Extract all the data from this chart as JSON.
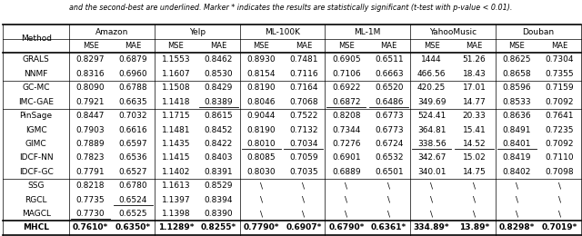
{
  "caption": "and the second-best are underlined. Marker * indicates the results are statistically significant (t-test with p-value < 0.01).",
  "datasets": [
    "Amazon",
    "Yelp",
    "ML-100K",
    "ML-1M",
    "YahooMusic",
    "Douban"
  ],
  "methods": [
    {
      "name": "GRALS",
      "group": 0,
      "values": [
        "0.8297",
        "0.6879",
        "1.1553",
        "0.8462",
        "0.8930",
        "0.7481",
        "0.6905",
        "0.6511",
        "1444",
        "51.26",
        "0.8625",
        "0.7304"
      ],
      "bold": [],
      "underline": []
    },
    {
      "name": "NNMF",
      "group": 0,
      "values": [
        "0.8316",
        "0.6960",
        "1.1607",
        "0.8530",
        "0.8154",
        "0.7116",
        "0.7106",
        "0.6663",
        "466.56",
        "18.43",
        "0.8658",
        "0.7355"
      ],
      "bold": [],
      "underline": []
    },
    {
      "name": "GC-MC",
      "group": 1,
      "values": [
        "0.8090",
        "0.6788",
        "1.1508",
        "0.8429",
        "0.8190",
        "0.7164",
        "0.6922",
        "0.6520",
        "420.25",
        "17.01",
        "0.8596",
        "0.7159"
      ],
      "bold": [],
      "underline": []
    },
    {
      "name": "IMC-GAE",
      "group": 1,
      "values": [
        "0.7921",
        "0.6635",
        "1.1418",
        "0.8389",
        "0.8046",
        "0.7068",
        "0.6872",
        "0.6486",
        "349.69",
        "14.77",
        "0.8533",
        "0.7092"
      ],
      "bold": [],
      "underline": [
        3,
        6,
        7
      ]
    },
    {
      "name": "PinSage",
      "group": 2,
      "values": [
        "0.8447",
        "0.7032",
        "1.1715",
        "0.8615",
        "0.9044",
        "0.7522",
        "0.8208",
        "0.6773",
        "524.41",
        "20.33",
        "0.8636",
        "0.7641"
      ],
      "bold": [],
      "underline": []
    },
    {
      "name": "IGMC",
      "group": 2,
      "values": [
        "0.7903",
        "0.6616",
        "1.1481",
        "0.8452",
        "0.8190",
        "0.7132",
        "0.7344",
        "0.6773",
        "364.81",
        "15.41",
        "0.8491",
        "0.7235"
      ],
      "bold": [],
      "underline": []
    },
    {
      "name": "GIMC",
      "group": 2,
      "values": [
        "0.7889",
        "0.6597",
        "1.1435",
        "0.8422",
        "0.8010",
        "0.7034",
        "0.7276",
        "0.6724",
        "338.56",
        "14.52",
        "0.8401",
        "0.7092"
      ],
      "bold": [],
      "underline": [
        4,
        5,
        8,
        9,
        10
      ]
    },
    {
      "name": "IDCF-NN",
      "group": 2,
      "values": [
        "0.7823",
        "0.6536",
        "1.1415",
        "0.8403",
        "0.8085",
        "0.7059",
        "0.6901",
        "0.6532",
        "342.67",
        "15.02",
        "0.8419",
        "0.7110"
      ],
      "bold": [],
      "underline": []
    },
    {
      "name": "IDCF-GC",
      "group": 2,
      "values": [
        "0.7791",
        "0.6527",
        "1.1402",
        "0.8391",
        "0.8030",
        "0.7035",
        "0.6889",
        "0.6501",
        "340.01",
        "14.75",
        "0.8402",
        "0.7098"
      ],
      "bold": [],
      "underline": []
    },
    {
      "name": "SSG",
      "group": 3,
      "values": [
        "0.8218",
        "0.6780",
        "1.1613",
        "0.8529",
        "\\\\",
        "\\\\",
        "\\\\",
        "\\\\",
        "\\\\",
        "\\\\",
        "\\\\",
        "\\\\"
      ],
      "bold": [],
      "underline": []
    },
    {
      "name": "RGCL",
      "group": 3,
      "values": [
        "0.7735",
        "0.6524",
        "1.1397",
        "0.8394",
        "\\\\",
        "\\\\",
        "\\\\",
        "\\\\",
        "\\\\",
        "\\\\",
        "\\\\",
        "\\\\"
      ],
      "bold": [],
      "underline": [
        1
      ]
    },
    {
      "name": "MAGCL",
      "group": 3,
      "values": [
        "0.7730",
        "0.6525",
        "1.1398",
        "0.8390",
        "\\\\",
        "\\\\",
        "\\\\",
        "\\\\",
        "\\\\",
        "\\\\",
        "\\\\",
        "\\\\"
      ],
      "bold": [],
      "underline": [
        0
      ]
    },
    {
      "name": "MHCL",
      "group": 4,
      "values": [
        "0.7610*",
        "0.6350*",
        "1.1289*",
        "0.8255*",
        "0.7790*",
        "0.6907*",
        "0.6790*",
        "0.6361*",
        "334.89*",
        "13.89*",
        "0.8298*",
        "0.7019*"
      ],
      "bold": [
        0,
        1,
        2,
        3,
        4,
        5,
        6,
        7,
        8,
        9,
        10,
        11
      ],
      "underline": []
    }
  ],
  "font_size": 6.5,
  "caption_fontsize": 5.8
}
